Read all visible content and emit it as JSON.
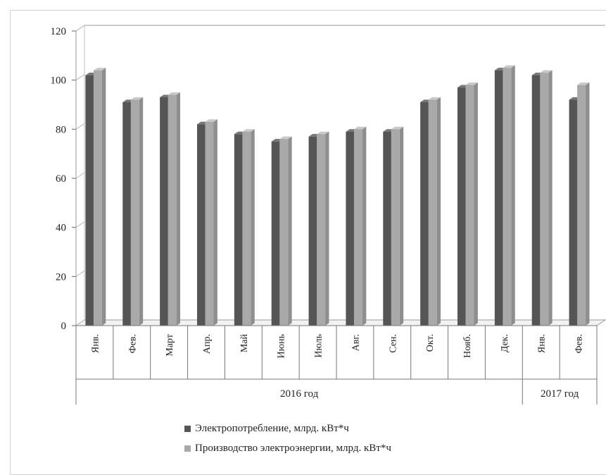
{
  "chart_data": {
    "type": "bar",
    "style": "3d-clustered-column",
    "categories": [
      "Янв.",
      "Фев.",
      "Март",
      "Апр.",
      "Май",
      "Июнь",
      "Июль",
      "Авг.",
      "Сен.",
      "Окт.",
      "Нояб.",
      "Дек.",
      "Янв.",
      "Фев."
    ],
    "category_groups": [
      {
        "label": "2016 год",
        "count": 12
      },
      {
        "label": "2017 год",
        "count": 2
      }
    ],
    "series": [
      {
        "name": "Электропотребление, млрд. кВт*ч",
        "color": "#555555",
        "values": [
          102,
          91,
          93,
          82,
          78,
          75,
          77,
          79,
          79,
          91,
          97,
          104,
          102,
          92
        ]
      },
      {
        "name": "Производство электроэнергии, млрд. кВт*ч",
        "color": "#a9a9a9",
        "values": [
          104,
          92,
          94,
          83,
          79,
          76,
          78,
          80,
          80,
          92,
          98,
          105,
          103,
          98
        ]
      }
    ],
    "yticks": [
      0,
      20,
      40,
      60,
      80,
      100,
      120
    ],
    "ylim": [
      0,
      120
    ],
    "grid": false,
    "legend_position": "bottom"
  }
}
